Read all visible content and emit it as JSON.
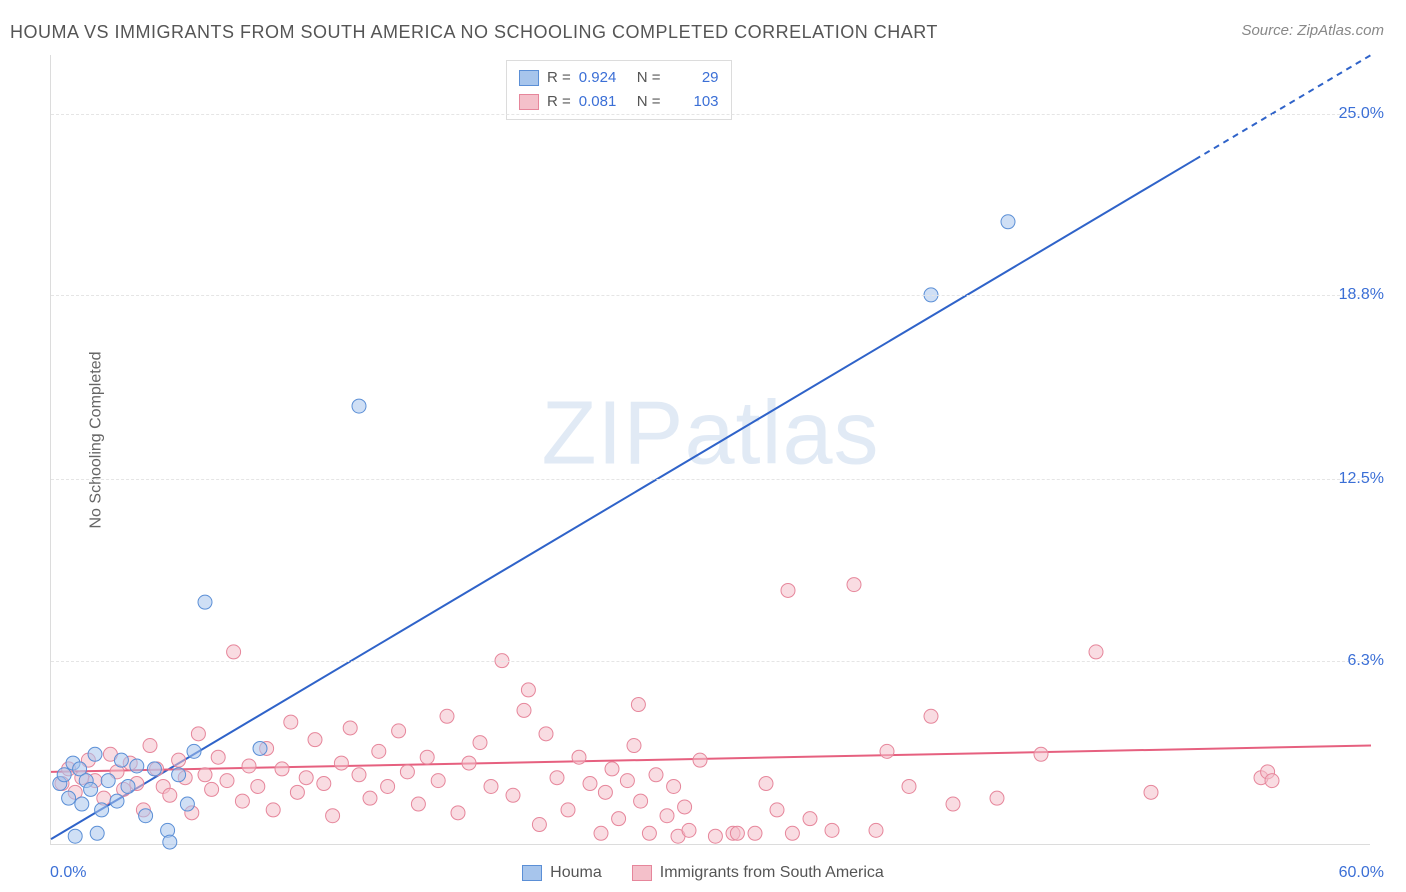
{
  "title": "HOUMA VS IMMIGRANTS FROM SOUTH AMERICA NO SCHOOLING COMPLETED CORRELATION CHART",
  "source": "Source: ZipAtlas.com",
  "ylabel": "No Schooling Completed",
  "watermark_zip": "ZIP",
  "watermark_atlas": "atlas",
  "chart": {
    "type": "scatter",
    "background_color": "#ffffff",
    "grid_color": "#e5e5e5",
    "axis_color": "#dcdcdc",
    "tick_color": "#3b6fd6",
    "tick_fontsize": 16,
    "title_fontsize": 18,
    "title_color": "#555555",
    "label_fontsize": 16,
    "label_color": "#666666",
    "xlim": [
      0,
      60
    ],
    "ylim": [
      0,
      27
    ],
    "xtick_min_label": "0.0%",
    "xtick_max_label": "60.0%",
    "yticks": [
      {
        "value": 6.3,
        "label": "6.3%"
      },
      {
        "value": 12.5,
        "label": "12.5%"
      },
      {
        "value": 18.8,
        "label": "18.8%"
      },
      {
        "value": 25.0,
        "label": "25.0%"
      }
    ],
    "marker_radius": 7,
    "marker_opacity": 0.55,
    "line_width": 2,
    "series": [
      {
        "id": "houma",
        "name": "Houma",
        "fill_color": "#a7c5ec",
        "stroke_color": "#5b8fd6",
        "line_color": "#2f63c9",
        "R": "0.924",
        "N": "29",
        "trend": {
          "x1": 0,
          "y1": 0.2,
          "x2": 60,
          "y2": 27.0,
          "dash_after_x": 52
        },
        "points": [
          [
            0.4,
            2.1
          ],
          [
            0.6,
            2.4
          ],
          [
            0.8,
            1.6
          ],
          [
            1.0,
            2.8
          ],
          [
            1.1,
            0.3
          ],
          [
            1.3,
            2.6
          ],
          [
            1.4,
            1.4
          ],
          [
            1.6,
            2.2
          ],
          [
            1.8,
            1.9
          ],
          [
            2.0,
            3.1
          ],
          [
            2.1,
            0.4
          ],
          [
            2.3,
            1.2
          ],
          [
            2.6,
            2.2
          ],
          [
            3.0,
            1.5
          ],
          [
            3.2,
            2.9
          ],
          [
            3.5,
            2.0
          ],
          [
            3.9,
            2.7
          ],
          [
            4.3,
            1.0
          ],
          [
            4.7,
            2.6
          ],
          [
            5.3,
            0.5
          ],
          [
            5.4,
            0.1
          ],
          [
            5.8,
            2.4
          ],
          [
            6.2,
            1.4
          ],
          [
            6.5,
            3.2
          ],
          [
            7.0,
            8.3
          ],
          [
            9.5,
            3.3
          ],
          [
            14.0,
            15.0
          ],
          [
            40.0,
            18.8
          ],
          [
            43.5,
            21.3
          ]
        ]
      },
      {
        "id": "immigrants",
        "name": "Immigrants from South America",
        "fill_color": "#f4c0ca",
        "stroke_color": "#e6869b",
        "line_color": "#e6607f",
        "R": "0.081",
        "N": "103",
        "trend": {
          "x1": 0,
          "y1": 2.5,
          "x2": 60,
          "y2": 3.4
        },
        "points": [
          [
            0.5,
            2.1
          ],
          [
            0.8,
            2.6
          ],
          [
            1.1,
            1.8
          ],
          [
            1.4,
            2.3
          ],
          [
            1.7,
            2.9
          ],
          [
            2.0,
            2.2
          ],
          [
            2.4,
            1.6
          ],
          [
            2.7,
            3.1
          ],
          [
            3.0,
            2.5
          ],
          [
            3.3,
            1.9
          ],
          [
            3.6,
            2.8
          ],
          [
            3.9,
            2.1
          ],
          [
            4.2,
            1.2
          ],
          [
            4.5,
            3.4
          ],
          [
            4.8,
            2.6
          ],
          [
            5.1,
            2.0
          ],
          [
            5.4,
            1.7
          ],
          [
            5.8,
            2.9
          ],
          [
            6.1,
            2.3
          ],
          [
            6.4,
            1.1
          ],
          [
            6.7,
            3.8
          ],
          [
            7.0,
            2.4
          ],
          [
            7.3,
            1.9
          ],
          [
            7.6,
            3.0
          ],
          [
            8.0,
            2.2
          ],
          [
            8.3,
            6.6
          ],
          [
            8.7,
            1.5
          ],
          [
            9.0,
            2.7
          ],
          [
            9.4,
            2.0
          ],
          [
            9.8,
            3.3
          ],
          [
            10.1,
            1.2
          ],
          [
            10.5,
            2.6
          ],
          [
            10.9,
            4.2
          ],
          [
            11.2,
            1.8
          ],
          [
            11.6,
            2.3
          ],
          [
            12.0,
            3.6
          ],
          [
            12.4,
            2.1
          ],
          [
            12.8,
            1.0
          ],
          [
            13.2,
            2.8
          ],
          [
            13.6,
            4.0
          ],
          [
            14.0,
            2.4
          ],
          [
            14.5,
            1.6
          ],
          [
            14.9,
            3.2
          ],
          [
            15.3,
            2.0
          ],
          [
            15.8,
            3.9
          ],
          [
            16.2,
            2.5
          ],
          [
            16.7,
            1.4
          ],
          [
            17.1,
            3.0
          ],
          [
            17.6,
            2.2
          ],
          [
            18.0,
            4.4
          ],
          [
            18.5,
            1.1
          ],
          [
            19.0,
            2.8
          ],
          [
            19.5,
            3.5
          ],
          [
            20.0,
            2.0
          ],
          [
            20.5,
            6.3
          ],
          [
            21.0,
            1.7
          ],
          [
            21.5,
            4.6
          ],
          [
            21.7,
            5.3
          ],
          [
            22.2,
            0.7
          ],
          [
            22.5,
            3.8
          ],
          [
            23.0,
            2.3
          ],
          [
            23.5,
            1.2
          ],
          [
            24.0,
            3.0
          ],
          [
            24.5,
            2.1
          ],
          [
            25.0,
            0.4
          ],
          [
            25.2,
            1.8
          ],
          [
            25.5,
            2.6
          ],
          [
            25.8,
            0.9
          ],
          [
            26.2,
            2.2
          ],
          [
            26.5,
            3.4
          ],
          [
            26.7,
            4.8
          ],
          [
            26.8,
            1.5
          ],
          [
            27.2,
            0.4
          ],
          [
            27.5,
            2.4
          ],
          [
            28.0,
            1.0
          ],
          [
            28.3,
            2.0
          ],
          [
            28.5,
            0.3
          ],
          [
            28.8,
            1.3
          ],
          [
            29.0,
            0.5
          ],
          [
            29.5,
            2.9
          ],
          [
            30.2,
            0.3
          ],
          [
            31.0,
            0.4
          ],
          [
            31.2,
            0.4
          ],
          [
            32.0,
            0.4
          ],
          [
            32.5,
            2.1
          ],
          [
            33.0,
            1.2
          ],
          [
            33.5,
            8.7
          ],
          [
            33.7,
            0.4
          ],
          [
            34.5,
            0.9
          ],
          [
            35.5,
            0.5
          ],
          [
            36.5,
            8.9
          ],
          [
            37.5,
            0.5
          ],
          [
            38.0,
            3.2
          ],
          [
            39.0,
            2.0
          ],
          [
            40.0,
            4.4
          ],
          [
            41.0,
            1.4
          ],
          [
            43.0,
            1.6
          ],
          [
            45.0,
            3.1
          ],
          [
            47.5,
            6.6
          ],
          [
            50.0,
            1.8
          ],
          [
            55.0,
            2.3
          ],
          [
            55.3,
            2.5
          ],
          [
            55.5,
            2.2
          ]
        ]
      }
    ]
  },
  "legend_top": {
    "R_label": "R =",
    "N_label": "N ="
  },
  "legend_bottom": {
    "items": [
      {
        "series": 0
      },
      {
        "series": 1
      }
    ]
  }
}
